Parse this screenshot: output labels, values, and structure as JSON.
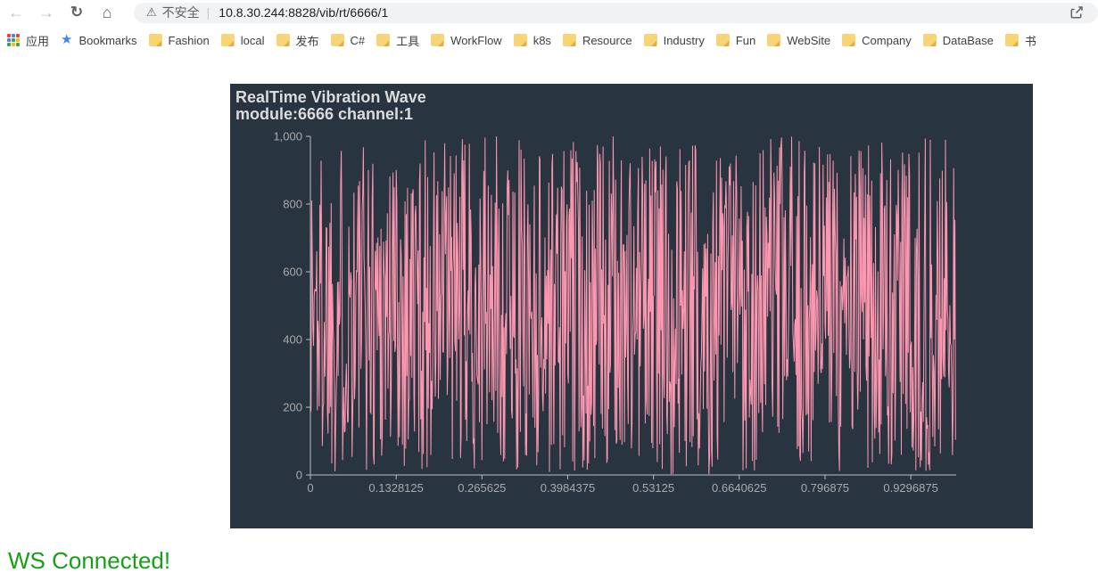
{
  "browser": {
    "icons": {
      "back": "←",
      "forward": "→",
      "reload": "↻",
      "home": "⌂",
      "warning": "⚠",
      "star": "★"
    },
    "address_bar": {
      "security_warning_label": "不安全",
      "divider": "|",
      "url": "10.8.30.244:8828/vib/rt/6666/1"
    },
    "bookmarks": {
      "apps_label": "应用",
      "apps_grid_colors": [
        "#ea4335",
        "#4285f4",
        "#ea4335",
        "#4285f4",
        "#34a853",
        "#fbbc05",
        "#34a853",
        "#fbbc05",
        "#34a853"
      ],
      "items": [
        {
          "label": "Bookmarks",
          "icon": "star-icon"
        },
        {
          "label": "Fashion",
          "icon": "folder-icon"
        },
        {
          "label": "local",
          "icon": "folder-icon"
        },
        {
          "label": "发布",
          "icon": "folder-icon"
        },
        {
          "label": "C#",
          "icon": "folder-icon"
        },
        {
          "label": "工具",
          "icon": "folder-icon"
        },
        {
          "label": "WorkFlow",
          "icon": "folder-icon"
        },
        {
          "label": "k8s",
          "icon": "folder-icon"
        },
        {
          "label": "Resource",
          "icon": "folder-icon"
        },
        {
          "label": "Industry",
          "icon": "folder-icon"
        },
        {
          "label": "Fun",
          "icon": "folder-icon"
        },
        {
          "label": "WebSite",
          "icon": "folder-icon"
        },
        {
          "label": "Company",
          "icon": "folder-icon"
        },
        {
          "label": "DataBase",
          "icon": "folder-icon"
        },
        {
          "label": "书",
          "icon": "folder-icon"
        }
      ]
    }
  },
  "chart": {
    "title": "RealTime Vibration Wave",
    "subtitle": "module:6666 channel:1",
    "panel_bg": "#293441",
    "title_color": "#dcdcdc",
    "axis_line_color": "#b8bdc3",
    "axis_label_color": "#aaaaaa"
  },
  "chart_data": {
    "type": "line",
    "title": "RealTime Vibration Wave",
    "subtitle": "module:6666 channel:1",
    "xlabel": "",
    "ylabel": "",
    "x_range": [
      0,
      1
    ],
    "ylim": [
      0,
      1000
    ],
    "x_tick_values": [
      0,
      0.1328125,
      0.265625,
      0.3984375,
      0.53125,
      0.6640625,
      0.796875,
      0.9296875
    ],
    "x_tick_labels": [
      "0",
      "0.1328125",
      "0.265625",
      "0.3984375",
      "0.53125",
      "0.6640625",
      "0.796875",
      "0.9296875"
    ],
    "y_tick_values": [
      0,
      200,
      400,
      600,
      800,
      1000
    ],
    "y_tick_labels": [
      "0",
      "200",
      "400",
      "600",
      "800",
      "1,000"
    ],
    "num_points": 1024,
    "signal": "dense random vibration noise, samples span ~0 to ~1000 across full width",
    "series_color": "#fc97af",
    "grid": false,
    "legend": false,
    "noise_seed": 1337
  },
  "status": {
    "text": "WS Connected!",
    "color": "#17a017"
  }
}
